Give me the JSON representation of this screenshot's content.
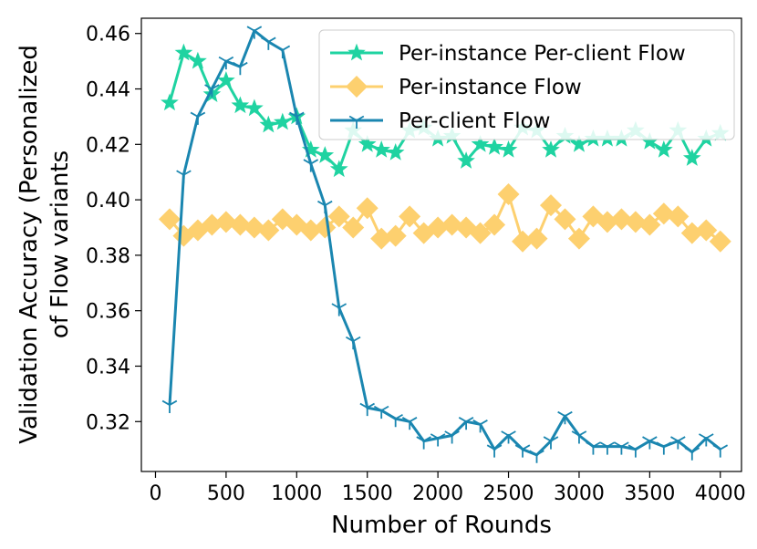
{
  "chart_data": {
    "type": "line",
    "title": "",
    "xlabel": "Number of Rounds",
    "ylabel_line1": "Validation Accuracy (Personalized",
    "ylabel_line2": "of Flow variants",
    "xlim": [
      -100,
      4150
    ],
    "ylim": [
      0.302,
      0.4655
    ],
    "xticks": [
      0,
      500,
      1000,
      1500,
      2000,
      2500,
      3000,
      3500,
      4000
    ],
    "xtick_labels": [
      "0",
      "500",
      "1000",
      "1500",
      "2000",
      "2500",
      "3000",
      "3500",
      "4000"
    ],
    "yticks": [
      0.32,
      0.34,
      0.36,
      0.38,
      0.4,
      0.42,
      0.44,
      0.46
    ],
    "ytick_labels": [
      "0.32",
      "0.34",
      "0.36",
      "0.38",
      "0.40",
      "0.42",
      "0.44",
      "0.46"
    ],
    "legend_position": "top-right",
    "x": [
      100,
      200,
      300,
      400,
      500,
      600,
      700,
      800,
      900,
      1000,
      1100,
      1200,
      1300,
      1400,
      1500,
      1600,
      1700,
      1800,
      1900,
      2000,
      2100,
      2200,
      2300,
      2400,
      2500,
      2600,
      2700,
      2800,
      2900,
      3000,
      3100,
      3200,
      3300,
      3400,
      3500,
      3600,
      3700,
      3800,
      3900,
      4000
    ],
    "series": [
      {
        "name": "Per-instance Per-client Flow",
        "color": "#1fd3a1",
        "marker": "star",
        "values": [
          0.435,
          0.453,
          0.45,
          0.438,
          0.443,
          0.434,
          0.433,
          0.427,
          0.428,
          0.43,
          0.418,
          0.416,
          0.411,
          0.425,
          0.42,
          0.418,
          0.417,
          0.425,
          0.426,
          0.422,
          0.423,
          0.414,
          0.42,
          0.419,
          0.418,
          0.426,
          0.425,
          0.418,
          0.423,
          0.42,
          0.422,
          0.422,
          0.422,
          0.425,
          0.421,
          0.418,
          0.425,
          0.415,
          0.422,
          0.424
        ]
      },
      {
        "name": "Per-instance Flow",
        "color": "#fdd06f",
        "marker": "diamond",
        "values": [
          0.393,
          0.387,
          0.389,
          0.391,
          0.392,
          0.391,
          0.39,
          0.389,
          0.393,
          0.391,
          0.389,
          0.39,
          0.394,
          0.39,
          0.397,
          0.386,
          0.387,
          0.394,
          0.388,
          0.39,
          0.391,
          0.39,
          0.388,
          0.391,
          0.402,
          0.385,
          0.386,
          0.398,
          0.393,
          0.386,
          0.394,
          0.392,
          0.393,
          0.392,
          0.391,
          0.395,
          0.394,
          0.388,
          0.389,
          0.385
        ]
      },
      {
        "name": "Per-client Flow",
        "color": "#1a86b0",
        "marker": "tri_down",
        "values": [
          0.326,
          0.409,
          0.43,
          0.44,
          0.45,
          0.448,
          0.461,
          0.457,
          0.454,
          0.43,
          0.413,
          0.398,
          0.361,
          0.349,
          0.325,
          0.324,
          0.321,
          0.32,
          0.313,
          0.314,
          0.315,
          0.32,
          0.319,
          0.31,
          0.315,
          0.31,
          0.308,
          0.313,
          0.322,
          0.315,
          0.311,
          0.311,
          0.311,
          0.31,
          0.313,
          0.311,
          0.313,
          0.309,
          0.314,
          0.31
        ]
      }
    ]
  }
}
